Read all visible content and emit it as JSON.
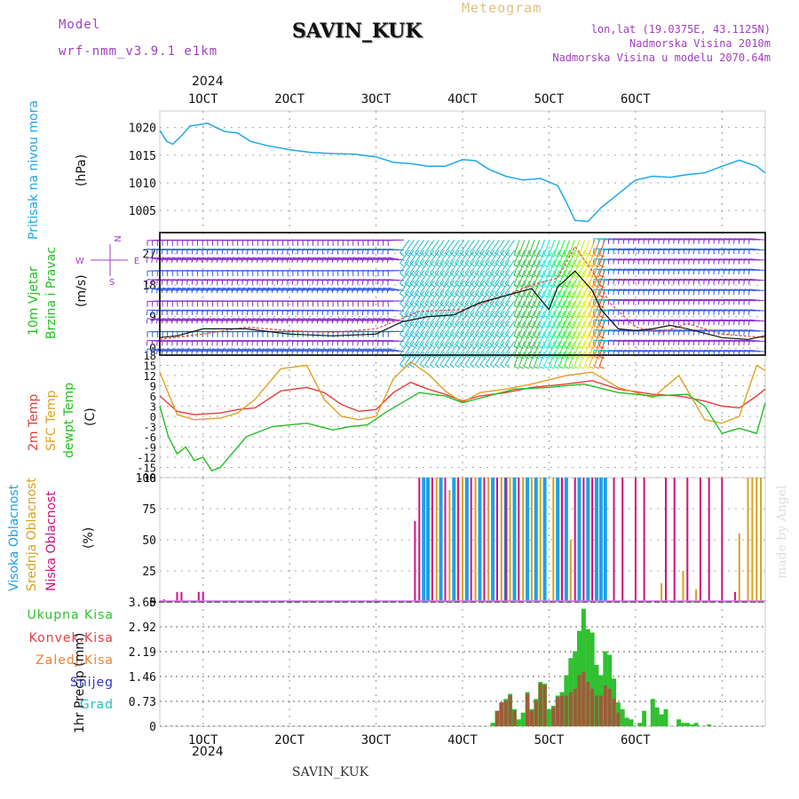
{
  "header": {
    "model_label": "Model",
    "model_name": "wrf-nmm_v3.9.1  e1km",
    "station": "SAVIN_KUK",
    "title": "Meteogram",
    "lonlat": "lon,lat (19.0375E, 43.1125N)",
    "elevation": "Nadmorska Visina 2010m",
    "model_elevation": "Nadmorska Visina u modelu 2070.64m",
    "footer_station": "SAVIN_KUK",
    "watermark": "made by Angel"
  },
  "colors": {
    "pressure": "#1ea8e8",
    "temp2m": "#e83c3c",
    "sfc_temp": "#e0a020",
    "dewpoint": "#22c022",
    "high_cloud": "#1ea0e8",
    "mid_cloud": "#d8a020",
    "low_cloud": "#d01080",
    "rain_total": "#30c030",
    "rain_conv": "#e04040",
    "rain_frozen": "#f08030",
    "snow": "#3030d0",
    "graupel": "#20c0c0",
    "accent_purple": "#a040c0"
  },
  "axes": {
    "top_year": "2024",
    "bottom_year": "2024",
    "x_ticks": [
      "1OCT",
      "2OCT",
      "3OCT",
      "4OCT",
      "5OCT",
      "6OCT"
    ]
  },
  "panel_labels": {
    "pressure": [
      "Pritisak na nivou mora",
      "(hPa)"
    ],
    "wind": [
      "10m Vjetar",
      "Brzina i Pravac",
      "(m/s)"
    ],
    "compass": [
      "N",
      "E",
      "W",
      "S"
    ],
    "temp": [
      "2m Temp",
      "SFC Temp",
      "dewpt Temp",
      "(C)"
    ],
    "cloud": [
      "Visoka Oblacnost",
      "Srednja Oblacnost",
      "Niska Oblacnost",
      "(%)"
    ],
    "precip_legend": [
      "Ukupna Kisa",
      "Konvek.Kisa",
      "Zaledj.Kisa",
      "Snijeg",
      "Grad"
    ],
    "precip_axis": "1hr Precip (mm)"
  },
  "chart_data": [
    {
      "type": "line",
      "panel": "pressure",
      "ylabel": "Pritisak na nivou mora (hPa)",
      "y_ticks": [
        1005,
        1010,
        1015,
        1020
      ],
      "ylim": [
        1001,
        1023
      ],
      "x_unit": "days from 0 UTC 1 OCT 2024",
      "series": [
        {
          "x": [
            -0.5,
            -0.42,
            -0.35,
            -0.25,
            -0.15,
            -0.05,
            0.05,
            0.15,
            0.25,
            0.4,
            0.55,
            0.75,
            1.0,
            1.25,
            1.5,
            1.75,
            2.0,
            2.2,
            2.4,
            2.6,
            2.8,
            3.0,
            3.15,
            3.3,
            3.5,
            3.7,
            3.9,
            4.1,
            4.2,
            4.3,
            4.45,
            4.6,
            4.8,
            5.0,
            5.2,
            5.4,
            5.6,
            5.8,
            6.0,
            6.2,
            6.4,
            6.5
          ],
          "y": [
            1019.5,
            1017.5,
            1017.0,
            1018.5,
            1020.3,
            1020.5,
            1020.8,
            1020.0,
            1019.3,
            1019.0,
            1017.5,
            1016.7,
            1016.0,
            1015.5,
            1015.3,
            1015.2,
            1014.7,
            1013.7,
            1013.5,
            1013.0,
            1013.0,
            1014.2,
            1014.0,
            1012.5,
            1011.2,
            1010.5,
            1010.8,
            1009.5,
            1006.5,
            1003.2,
            1003.0,
            1005.5,
            1008.0,
            1010.5,
            1011.2,
            1011.0,
            1011.5,
            1011.8,
            1013.0,
            1014.1,
            1013.0,
            1011.8
          ]
        }
      ]
    },
    {
      "type": "line",
      "panel": "wind",
      "ylabel": "10m Vjetar Brzina i Pravac (m/s)",
      "y_ticks": [
        0,
        9,
        18,
        27
      ],
      "ylim": [
        -2,
        33
      ],
      "x_unit": "days from 0 UTC 1 OCT 2024",
      "series": [
        {
          "name": "speed",
          "x": [
            -0.5,
            -0.3,
            0.0,
            0.5,
            1.0,
            1.5,
            2.0,
            2.3,
            2.6,
            2.9,
            3.2,
            3.5,
            3.8,
            4.0,
            4.1,
            4.3,
            4.5,
            4.6,
            4.8,
            5.0,
            5.2,
            5.4,
            5.6,
            6.0,
            6.3,
            6.5
          ],
          "y": [
            3.0,
            3.5,
            5.5,
            5.5,
            4.0,
            3.5,
            4.0,
            7.5,
            9.0,
            9.5,
            13.0,
            15.0,
            17.0,
            11.0,
            17.5,
            22.0,
            16.5,
            11.0,
            5.5,
            5.0,
            5.5,
            6.5,
            5.5,
            3.0,
            2.5,
            3.5
          ]
        },
        {
          "name": "gust",
          "x": [
            -0.5,
            0.0,
            0.5,
            1.0,
            1.5,
            2.0,
            2.5,
            3.0,
            3.5,
            3.8,
            4.1,
            4.3,
            4.5,
            4.7,
            5.0,
            5.3,
            5.6,
            6.0,
            6.5
          ],
          "y": [
            2.5,
            4.0,
            6.0,
            5.0,
            4.5,
            5.5,
            10.5,
            11.0,
            15.0,
            18.0,
            20.0,
            29.0,
            22.0,
            13.0,
            6.0,
            4.5,
            7.0,
            4.0,
            3.0
          ]
        }
      ]
    },
    {
      "type": "line",
      "panel": "temperature",
      "ylabel": "(C)",
      "y_ticks": [
        -18,
        -15,
        -12,
        -9,
        -6,
        -3,
        0,
        3,
        6,
        9,
        12,
        15,
        18
      ],
      "ylim": [
        -18,
        18
      ],
      "x_unit": "days from 0 UTC 1 OCT 2024",
      "series": [
        {
          "name": "2m Temp",
          "x": [
            -0.5,
            -0.3,
            -0.1,
            0.2,
            0.4,
            0.6,
            0.9,
            1.2,
            1.4,
            1.6,
            1.8,
            2.0,
            2.2,
            2.4,
            2.6,
            2.8,
            3.0,
            3.2,
            3.5,
            3.8,
            4.2,
            4.5,
            4.8,
            5.2,
            5.5,
            5.8,
            6.0,
            6.2,
            6.4,
            6.5
          ],
          "y": [
            6.0,
            1.5,
            0.5,
            1.0,
            2.0,
            2.5,
            7.5,
            8.5,
            7.0,
            3.5,
            1.5,
            2.0,
            7.0,
            10.0,
            8.0,
            6.5,
            4.5,
            6.0,
            7.0,
            8.5,
            9.5,
            10.5,
            8.0,
            6.5,
            6.0,
            4.5,
            3.0,
            2.5,
            6.0,
            8.0
          ]
        },
        {
          "name": "SFC Temp",
          "x": [
            -0.5,
            -0.3,
            -0.1,
            0.2,
            0.4,
            0.6,
            0.9,
            1.2,
            1.4,
            1.6,
            1.8,
            2.0,
            2.2,
            2.4,
            2.6,
            2.8,
            3.0,
            3.2,
            3.5,
            3.8,
            4.2,
            4.5,
            4.8,
            5.2,
            5.5,
            5.8,
            6.0,
            6.2,
            6.4,
            6.5
          ],
          "y": [
            13.0,
            0.5,
            -1.0,
            -0.5,
            1.0,
            5.0,
            14.0,
            15.0,
            5.0,
            0.0,
            -1.0,
            0.0,
            11.0,
            16.0,
            12.5,
            7.5,
            4.0,
            7.0,
            8.0,
            9.5,
            12.0,
            13.0,
            8.5,
            5.5,
            12.0,
            -1.0,
            -2.0,
            0.0,
            15.0,
            13.5
          ]
        },
        {
          "name": "dewpt Temp",
          "x": [
            -0.5,
            -0.4,
            -0.3,
            -0.2,
            -0.1,
            0.0,
            0.1,
            0.2,
            0.3,
            0.5,
            0.8,
            1.2,
            1.5,
            1.7,
            1.9,
            2.1,
            2.3,
            2.5,
            2.8,
            3.0,
            3.3,
            3.6,
            4.0,
            4.4,
            4.8,
            5.2,
            5.6,
            5.8,
            6.0,
            6.2,
            6.4,
            6.5
          ],
          "y": [
            3.0,
            -6.0,
            -11.0,
            -9.0,
            -13.0,
            -12.0,
            -16.0,
            -15.0,
            -12.0,
            -6.0,
            -3.0,
            -2.0,
            -4.0,
            -3.0,
            -2.5,
            1.0,
            4.0,
            7.0,
            6.0,
            4.0,
            6.0,
            8.0,
            8.5,
            9.5,
            7.0,
            6.0,
            6.5,
            3.0,
            -5.0,
            -3.5,
            -5.0,
            4.0
          ]
        }
      ]
    },
    {
      "type": "bar",
      "panel": "cloud",
      "ylabel": "(%)",
      "y_ticks": [
        0,
        25,
        50,
        75,
        100
      ],
      "ylim": [
        0,
        100
      ],
      "x_unit": "days from 0 UTC 1 OCT 2024",
      "series": [
        {
          "name": "Visoka Oblacnost",
          "x": [
            2.55,
            2.6,
            2.75,
            2.9,
            3.05,
            3.2,
            3.35,
            3.5,
            3.6,
            3.75,
            3.85,
            3.95,
            4.1,
            4.2,
            4.35,
            4.45,
            4.55,
            4.6,
            4.65
          ],
          "values": [
            100,
            100,
            100,
            100,
            100,
            100,
            100,
            100,
            100,
            100,
            100,
            100,
            100,
            100,
            100,
            100,
            100,
            100,
            100
          ]
        },
        {
          "name": "Srednja Oblacnost",
          "x": [
            2.7,
            2.85,
            3.0,
            3.15,
            3.3,
            3.45,
            3.55,
            3.7,
            3.8,
            3.9,
            4.05,
            4.25,
            4.4,
            5.3,
            5.55,
            5.7,
            6.2,
            6.3,
            6.35,
            6.4,
            6.45
          ],
          "values": [
            100,
            90,
            100,
            100,
            100,
            100,
            100,
            100,
            100,
            100,
            100,
            50,
            100,
            15,
            25,
            10,
            55,
            100,
            100,
            100,
            100
          ]
        },
        {
          "name": "Niska Oblacnost",
          "x": [
            -0.45,
            -0.3,
            -0.25,
            -0.05,
            0.0,
            1.35,
            2.45,
            2.5,
            2.65,
            2.8,
            2.95,
            3.1,
            3.25,
            3.4,
            3.5,
            3.65,
            4.15,
            4.3,
            4.4,
            4.5,
            4.75,
            4.85,
            5.0,
            5.1,
            5.35,
            5.45,
            5.6,
            5.75,
            5.85,
            6.0,
            6.15
          ],
          "values": [
            2,
            8,
            8,
            8,
            8,
            1,
            65,
            100,
            100,
            100,
            100,
            100,
            100,
            100,
            100,
            100,
            100,
            100,
            100,
            100,
            100,
            100,
            100,
            100,
            100,
            100,
            100,
            100,
            100,
            100,
            8
          ]
        }
      ]
    },
    {
      "type": "bar",
      "panel": "precipitation",
      "ylabel": "1hr Precip (mm)",
      "y_ticks": [
        0,
        0.73,
        1.46,
        2.19,
        2.92,
        3.65
      ],
      "ylim": [
        0,
        3.65
      ],
      "x_unit": "days from 0 UTC 1 OCT 2024",
      "series": [
        {
          "name": "Ukupna Kisa",
          "x": [
            3.35,
            3.4,
            3.45,
            3.5,
            3.55,
            3.6,
            3.65,
            3.7,
            3.75,
            3.8,
            3.85,
            3.9,
            3.95,
            4.0,
            4.05,
            4.1,
            4.15,
            4.2,
            4.25,
            4.3,
            4.35,
            4.4,
            4.45,
            4.5,
            4.55,
            4.6,
            4.65,
            4.7,
            4.75,
            4.8,
            4.85,
            4.9,
            4.95,
            5.05,
            5.1,
            5.2,
            5.25,
            5.3,
            5.35,
            5.5,
            5.55,
            5.6,
            5.65,
            5.7,
            5.85
          ],
          "values": [
            0.1,
            0.45,
            0.7,
            0.8,
            0.95,
            0.5,
            0.2,
            0.4,
            1.0,
            0.5,
            0.8,
            1.3,
            1.25,
            0.5,
            0.6,
            0.9,
            1.0,
            1.5,
            2.0,
            2.2,
            2.8,
            3.45,
            2.85,
            2.75,
            1.8,
            1.5,
            2.2,
            2.1,
            1.4,
            0.7,
            0.5,
            0.25,
            0.2,
            0.1,
            0.45,
            0.8,
            0.55,
            0.35,
            0.5,
            0.2,
            0.1,
            0.1,
            0.05,
            0.1,
            0.05
          ]
        },
        {
          "name": "Konvek.Kisa",
          "x": [
            3.4,
            3.45,
            3.5,
            3.55,
            3.6,
            3.75,
            3.8,
            3.85,
            3.9,
            3.95,
            4.05,
            4.1,
            4.15,
            4.2,
            4.25,
            4.3,
            4.35,
            4.4,
            4.45,
            4.5,
            4.55,
            4.6,
            4.65,
            4.7,
            4.75,
            4.8
          ],
          "values": [
            0.45,
            0.7,
            0.75,
            0.9,
            0.45,
            0.95,
            0.45,
            0.75,
            1.25,
            1.2,
            0.55,
            0.85,
            0.9,
            0.9,
            1.0,
            1.1,
            1.5,
            1.6,
            1.3,
            1.1,
            0.9,
            0.9,
            1.2,
            1.1,
            0.8,
            0.4
          ]
        }
      ]
    }
  ]
}
